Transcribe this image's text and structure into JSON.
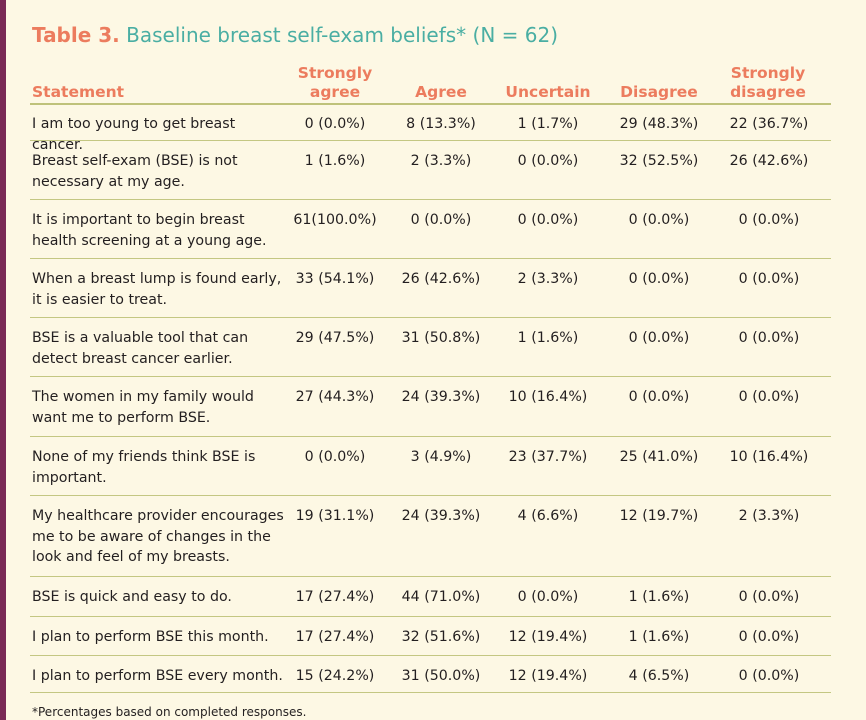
{
  "title": {
    "label": "Table 3.",
    "text": "Baseline breast self-exam beliefs* (N = 62)"
  },
  "columns": {
    "statement": "Statement",
    "strongly_agree": [
      "Strongly",
      "agree"
    ],
    "agree": "Agree",
    "uncertain": "Uncertain",
    "disagree": "Disagree",
    "strongly_disagree": [
      "Strongly",
      "disagree"
    ]
  },
  "rows": [
    {
      "statement": "I am too young to get breast cancer.",
      "values": [
        "0 (0.0%)",
        "8 (13.3%)",
        "1 (1.7%)",
        "29 (48.3%)",
        "22 (36.7%)"
      ]
    },
    {
      "statement": "Breast self-exam (BSE) is not necessary at my age.",
      "values": [
        "1 (1.6%)",
        "2 (3.3%)",
        "0 (0.0%)",
        "32 (52.5%)",
        "26 (42.6%)"
      ]
    },
    {
      "statement": "It is important to begin breast health screening at a young age.",
      "values": [
        "61(100.0%)",
        "0 (0.0%)",
        "0 (0.0%)",
        "0 (0.0%)",
        "0 (0.0%)"
      ]
    },
    {
      "statement": "When a breast lump is found early, it is easier to treat.",
      "values": [
        "33 (54.1%)",
        "26 (42.6%)",
        "2 (3.3%)",
        "0 (0.0%)",
        "0 (0.0%)"
      ]
    },
    {
      "statement": "BSE is a valuable tool that can detect breast cancer earlier.",
      "values": [
        "29 (47.5%)",
        "31 (50.8%)",
        "1 (1.6%)",
        "0 (0.0%)",
        "0 (0.0%)"
      ]
    },
    {
      "statement": "The women in my family would want me to perform BSE.",
      "values": [
        "27 (44.3%)",
        "24 (39.3%)",
        "10 (16.4%)",
        "0 (0.0%)",
        "0 (0.0%)"
      ]
    },
    {
      "statement": "None of my friends think BSE is important.",
      "values": [
        "0 (0.0%)",
        "3 (4.9%)",
        "23 (37.7%)",
        "25 (41.0%)",
        "10 (16.4%)"
      ]
    },
    {
      "statement": "My healthcare provider encourages me to be aware of changes in the look and feel of my breasts.",
      "values": [
        "19 (31.1%)",
        "24 (39.3%)",
        "4 (6.6%)",
        "12 (19.7%)",
        "2 (3.3%)"
      ]
    },
    {
      "statement": "BSE is quick and easy to do.",
      "values": [
        "17 (27.4%)",
        "44 (71.0%)",
        "0 (0.0%)",
        "1 (1.6%)",
        "0 (0.0%)"
      ]
    },
    {
      "statement": "I plan to perform BSE this month.",
      "values": [
        "17 (27.4%)",
        "32 (51.6%)",
        "12 (19.4%)",
        "1 (1.6%)",
        "0 (0.0%)"
      ]
    },
    {
      "statement": "I plan to perform BSE every month.",
      "values": [
        "15 (24.2%)",
        "31 (50.0%)",
        "12 (19.4%)",
        "4 (6.5%)",
        "0 (0.0%)"
      ]
    }
  ],
  "footnote": "*Percentages based on completed responses.",
  "colors": {
    "background": "#fdf8e4",
    "title_label": "#ec7c5e",
    "title_text": "#4aaea3",
    "header": "#ec7c5e",
    "rule": "#c4c782",
    "left_bar": "#7a2a55"
  }
}
